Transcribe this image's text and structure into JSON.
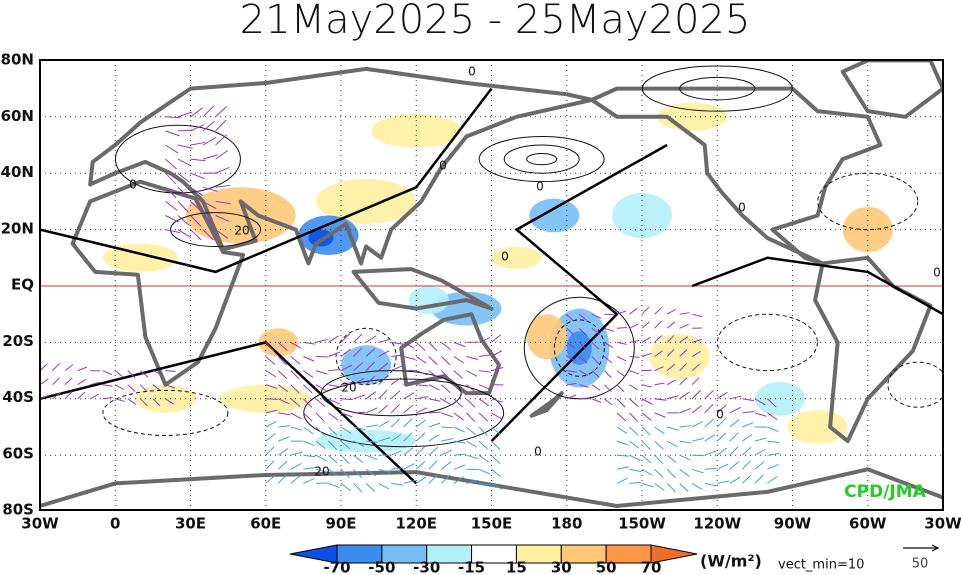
{
  "title": "21May2025 - 25May2025",
  "latitude_labels": [
    "80N",
    "60N",
    "40N",
    "20N",
    "EQ",
    "20S",
    "40S",
    "60S",
    "80S"
  ],
  "longitude_labels": [
    "30W",
    "0",
    "30E",
    "60E",
    "90E",
    "120E",
    "150E",
    "180",
    "150W",
    "120W",
    "90W",
    "60W",
    "30W"
  ],
  "contour_labels": [
    "0",
    "0",
    "0",
    "0",
    "0",
    "0",
    "0",
    "0",
    "0",
    "20",
    "20",
    "20"
  ],
  "colorbar": {
    "ticks": [
      -70,
      -50,
      -30,
      -15,
      15,
      30,
      50,
      70
    ],
    "colors": [
      "#0a50e6",
      "#3c8cf0",
      "#78bef5",
      "#b4f0fa",
      "#ffffff",
      "#fff0a0",
      "#ffc878",
      "#ff9646",
      "#f06e28"
    ],
    "unit": "(W/m²)"
  },
  "vector_note": "vect_min=10",
  "reference_vector": "50",
  "credit": "CPD/JMA"
}
